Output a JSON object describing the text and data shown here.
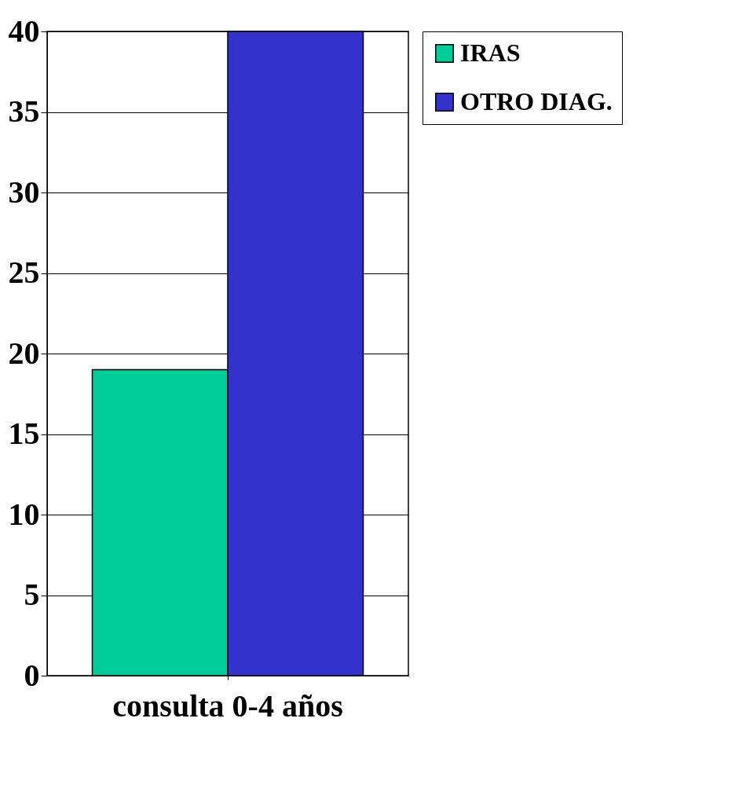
{
  "chart_data": {
    "type": "bar",
    "categories": [
      "consulta 0-4 años"
    ],
    "series": [
      {
        "name": "IRAS",
        "color": "#00cc99",
        "values": [
          19
        ]
      },
      {
        "name": "OTRO DIAG.",
        "color": "#3333cc",
        "values": [
          40
        ]
      }
    ],
    "ylim": [
      0,
      40
    ],
    "yticks": [
      0,
      5,
      10,
      15,
      20,
      25,
      30,
      35,
      40
    ],
    "grid": "y",
    "legend": "right"
  }
}
